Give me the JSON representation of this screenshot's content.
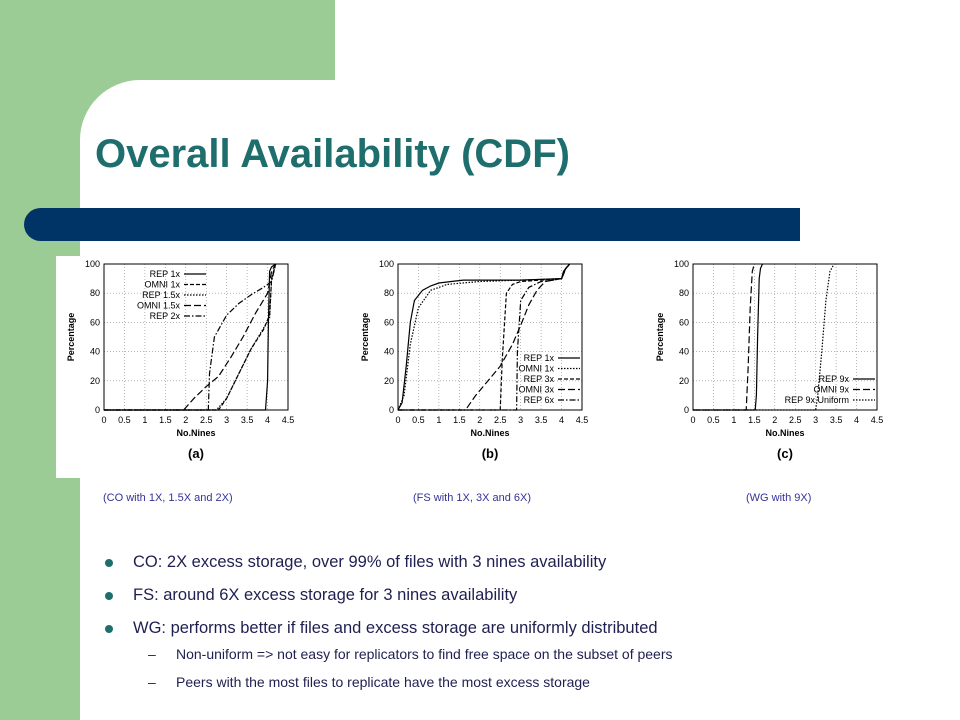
{
  "title": "Overall Availability (CDF)",
  "chart_data": [
    {
      "type": "line",
      "panel": "(a)",
      "caption": "(CO with 1X, 1.5X and 2X)",
      "xlabel": "No.Nines",
      "ylabel": "Percentage",
      "xlim": [
        0,
        4.5
      ],
      "ylim": [
        0,
        100
      ],
      "xticks": [
        "0",
        "0.5",
        "1",
        "1.5",
        "2",
        "2.5",
        "3",
        "3.5",
        "4",
        "4.5"
      ],
      "yticks": [
        "0",
        "20",
        "40",
        "60",
        "80",
        "100"
      ],
      "legend_position": "top-left",
      "series": [
        {
          "name": "REP 1x",
          "dash": "solid",
          "x": [
            0,
            3.95,
            4.0,
            4.02,
            4.05,
            4.1,
            4.2
          ],
          "y": [
            0,
            0,
            20,
            60,
            95,
            98,
            100
          ]
        },
        {
          "name": "OMNI 1x",
          "dash": "dashed",
          "x": [
            0,
            2.8,
            3.0,
            3.3,
            3.6,
            3.9,
            4.05,
            4.1,
            4.2
          ],
          "y": [
            0,
            0,
            8,
            25,
            42,
            55,
            65,
            90,
            100
          ]
        },
        {
          "name": "REP 1.5x",
          "dash": "dotted",
          "x": [
            0,
            2.75,
            3.0,
            3.3,
            3.6,
            3.9,
            4.05,
            4.1,
            4.2
          ],
          "y": [
            0,
            0,
            8,
            25,
            42,
            56,
            63,
            90,
            100
          ]
        },
        {
          "name": "OMNI 1.5x",
          "dash": "long-dash",
          "x": [
            0,
            1.95,
            2.2,
            2.5,
            2.8,
            3.1,
            3.4,
            3.7,
            4.0,
            4.1,
            4.2
          ],
          "y": [
            0,
            0,
            8,
            16,
            23,
            36,
            50,
            66,
            80,
            95,
            100
          ]
        },
        {
          "name": "REP 2x",
          "dash": "dash-dot",
          "x": [
            0,
            2.55,
            2.58,
            2.7,
            3.0,
            3.3,
            3.6,
            3.9,
            4.1,
            4.2
          ],
          "y": [
            0,
            0,
            25,
            50,
            65,
            73,
            79,
            84,
            88,
            100
          ]
        }
      ]
    },
    {
      "type": "line",
      "panel": "(b)",
      "caption": "(FS with 1X, 3X and 6X)",
      "xlabel": "No.Nines",
      "ylabel": "Percentage",
      "xlim": [
        0,
        4.5
      ],
      "ylim": [
        0,
        100
      ],
      "xticks": [
        "0",
        "0.5",
        "1",
        "1.5",
        "2",
        "2.5",
        "3",
        "3.5",
        "4",
        "4.5"
      ],
      "yticks": [
        "0",
        "20",
        "40",
        "60",
        "80",
        "100"
      ],
      "legend_position": "bottom-right",
      "series": [
        {
          "name": "REP 1x",
          "dash": "solid",
          "x": [
            0,
            0.1,
            0.2,
            0.3,
            0.4,
            0.6,
            0.8,
            1.0,
            1.3,
            1.6,
            2.0,
            3.0,
            4.0,
            4.05,
            4.1,
            4.2
          ],
          "y": [
            0,
            5,
            30,
            60,
            75,
            82,
            85,
            87,
            88,
            89,
            89,
            89,
            90,
            93,
            97,
            100
          ]
        },
        {
          "name": "OMNI 1x",
          "dash": "dotted",
          "x": [
            0,
            0.15,
            0.3,
            0.5,
            0.8,
            1.2,
            2.0,
            3.0,
            4.0,
            4.05,
            4.1,
            4.2
          ],
          "y": [
            0,
            10,
            45,
            70,
            82,
            86,
            88,
            89,
            90,
            93,
            97,
            100
          ]
        },
        {
          "name": "REP 3x",
          "dash": "dashed",
          "x": [
            0,
            2.5,
            2.55,
            2.65,
            2.8,
            3.0,
            3.5,
            4.0,
            4.05,
            4.2
          ],
          "y": [
            0,
            0,
            35,
            80,
            86,
            88,
            89,
            90,
            95,
            100
          ]
        },
        {
          "name": "OMNI 3x",
          "dash": "long-dash",
          "x": [
            0,
            1.65,
            1.9,
            2.2,
            2.5,
            2.8,
            3.0,
            3.2,
            3.4,
            3.6,
            4.0,
            4.05,
            4.2
          ],
          "y": [
            0,
            0,
            10,
            20,
            30,
            45,
            58,
            72,
            82,
            88,
            90,
            95,
            100
          ]
        },
        {
          "name": "REP 6x",
          "dash": "dash-dot",
          "x": [
            0,
            2.9,
            2.92,
            3.0,
            3.2,
            3.5,
            3.8,
            4.0,
            4.05,
            4.2
          ],
          "y": [
            0,
            0,
            40,
            75,
            84,
            88,
            89,
            90,
            95,
            100
          ]
        }
      ]
    },
    {
      "type": "line",
      "panel": "(c)",
      "caption": "(WG with 9X)",
      "xlabel": "No.Nines",
      "ylabel": "Percentage",
      "xlim": [
        0,
        4.5
      ],
      "ylim": [
        0,
        100
      ],
      "xticks": [
        "0",
        "0.5",
        "1",
        "1.5",
        "2",
        "2.5",
        "3",
        "3.5",
        "4",
        "4.5"
      ],
      "yticks": [
        "0",
        "20",
        "40",
        "60",
        "80",
        "100"
      ],
      "legend_position": "bottom-right",
      "series": [
        {
          "name": "REP 9x",
          "dash": "solid",
          "x": [
            0,
            1.52,
            1.55,
            1.58,
            1.62,
            1.65,
            1.7
          ],
          "y": [
            0,
            0,
            10,
            50,
            90,
            97,
            100
          ]
        },
        {
          "name": "OMNI 9x",
          "dash": "long-dash",
          "x": [
            0,
            1.3,
            1.35,
            1.4,
            1.45,
            1.5
          ],
          "y": [
            0,
            0,
            30,
            70,
            95,
            100
          ]
        },
        {
          "name": "REP 9x Uniform",
          "dash": "dotted",
          "x": [
            0,
            3.0,
            3.05,
            3.15,
            3.25,
            3.35,
            3.45
          ],
          "y": [
            0,
            0,
            10,
            40,
            75,
            95,
            100
          ]
        }
      ]
    }
  ],
  "bullets": [
    "CO: 2X excess storage, over 99% of files with 3 nines availability",
    "FS: around 6X excess storage for 3 nines availability",
    "WG: performs better if files and excess storage are uniformly distributed"
  ],
  "sub_bullets": [
    "Non-uniform => not easy for replicators to find free space on the subset of peers",
    "Peers with the most files to replicate have the most excess storage"
  ],
  "sub_bullet_marker": "–"
}
